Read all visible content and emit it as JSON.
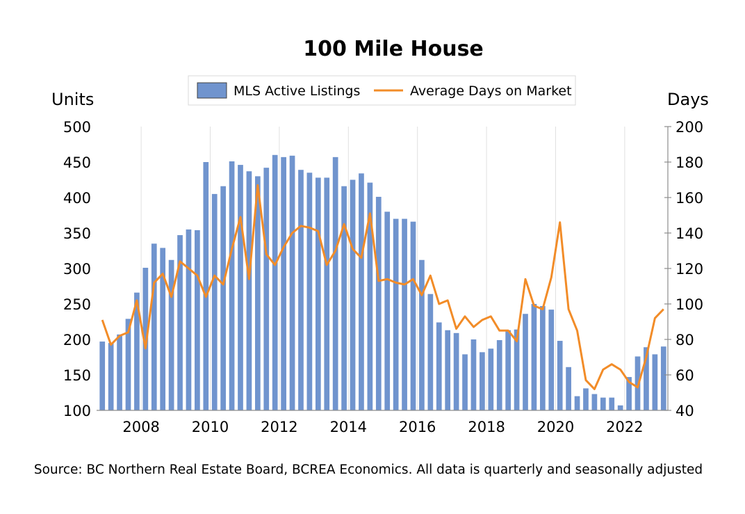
{
  "chart_data": {
    "type": "bar+line",
    "title": "100 Mile House",
    "y_left_label": "Units",
    "y_right_label": "Days",
    "y_left_range": [
      100,
      500
    ],
    "y_right_range": [
      40,
      200
    ],
    "y_left_ticks": [
      "100",
      "150",
      "200",
      "250",
      "300",
      "350",
      "400",
      "450",
      "500"
    ],
    "y_right_ticks": [
      "40",
      "60",
      "80",
      "100",
      "120",
      "140",
      "160",
      "180",
      "200"
    ],
    "x_ticks": [
      "2008",
      "2010",
      "2012",
      "2014",
      "2016",
      "2018",
      "2020",
      "2022"
    ],
    "x_tick_years": [
      2008,
      2010,
      2012,
      2014,
      2016,
      2018,
      2020,
      2022
    ],
    "frequency": "quarterly",
    "start_period": "2006 Q4",
    "grid": "vertical only",
    "legend_placement": "top-center",
    "series": [
      {
        "name": "MLS Active Listings",
        "type": "bar",
        "axis": "left",
        "color": "#7094CE",
        "values": [
          197,
          195,
          207,
          229,
          266,
          301,
          335,
          329,
          312,
          347,
          355,
          354,
          450,
          405,
          416,
          451,
          446,
          437,
          430,
          442,
          460,
          457,
          459,
          439,
          435,
          428,
          428,
          457,
          416,
          425,
          434,
          421,
          401,
          380,
          370,
          370,
          366,
          312,
          264,
          224,
          213,
          209,
          179,
          200,
          182,
          187,
          199,
          213,
          214,
          236,
          250,
          247,
          242,
          198,
          161,
          120,
          131,
          123,
          118,
          118,
          107,
          147,
          176,
          189,
          179,
          190
        ]
      },
      {
        "name": "Average Days on Market",
        "type": "line",
        "axis": "right",
        "color": "#F28C28",
        "values": [
          91,
          77,
          82,
          84,
          102,
          75,
          112,
          117,
          104,
          124,
          120,
          116,
          104,
          116,
          111,
          131,
          149,
          114,
          167,
          128,
          122,
          132,
          140,
          144,
          143,
          141,
          122,
          130,
          145,
          131,
          126,
          151,
          113,
          114,
          112,
          111,
          114,
          105,
          116,
          100,
          102,
          86,
          93,
          87,
          91,
          93,
          85,
          85,
          79,
          114,
          99,
          97,
          115,
          146,
          97,
          85,
          57,
          52,
          63,
          66,
          63,
          56,
          53,
          70,
          92,
          97
        ]
      }
    ]
  },
  "source_note": "Source: BC Northern Real Estate Board, BCREA Economics. All data is quarterly and seasonally adjusted",
  "colors": {
    "bar": "#7094CE",
    "line": "#F28C28",
    "grid": "#E0E0E0",
    "axis": "#8C8C8C"
  }
}
